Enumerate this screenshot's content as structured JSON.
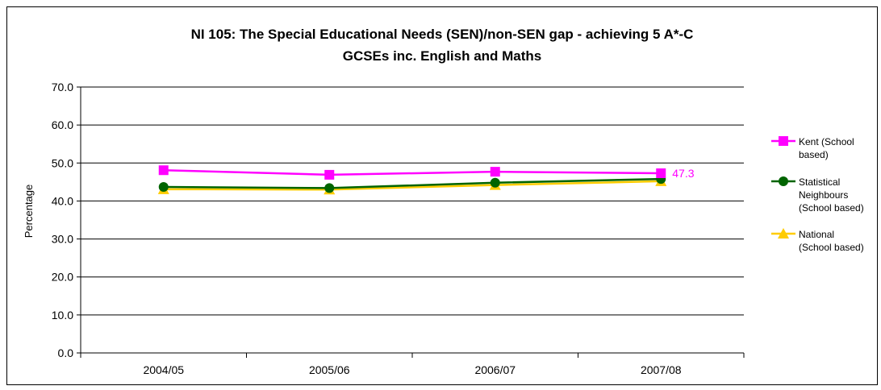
{
  "chart_data": {
    "type": "line",
    "title_lines": [
      "NI 105: The Special Educational Needs (SEN)/non-SEN gap - achieving 5 A*-C",
      "GCSEs inc. English and Maths"
    ],
    "xlabel": "",
    "ylabel": "Percentage",
    "categories": [
      "2004/05",
      "2005/06",
      "2006/07",
      "2007/08"
    ],
    "y_ticks": [
      "0.0",
      "10.0",
      "20.0",
      "30.0",
      "40.0",
      "50.0",
      "60.0",
      "70.0"
    ],
    "ylim": [
      0,
      70
    ],
    "grid": "horizontal",
    "legend_position": "right",
    "series": [
      {
        "name_lines": [
          "Kent (School",
          "based)"
        ],
        "values": [
          48.1,
          46.9,
          47.7,
          47.3
        ],
        "color": "#ff00ff",
        "marker": "square",
        "end_label": "47.3"
      },
      {
        "name_lines": [
          "Statistical",
          "Neighbours",
          "(School based)"
        ],
        "values": [
          43.7,
          43.4,
          44.8,
          45.8
        ],
        "color": "#006400",
        "marker": "circle"
      },
      {
        "name_lines": [
          "National",
          "(School based)"
        ],
        "values": [
          43.1,
          43.0,
          44.2,
          45.2
        ],
        "color": "#ffcc00",
        "marker": "triangle"
      }
    ]
  }
}
